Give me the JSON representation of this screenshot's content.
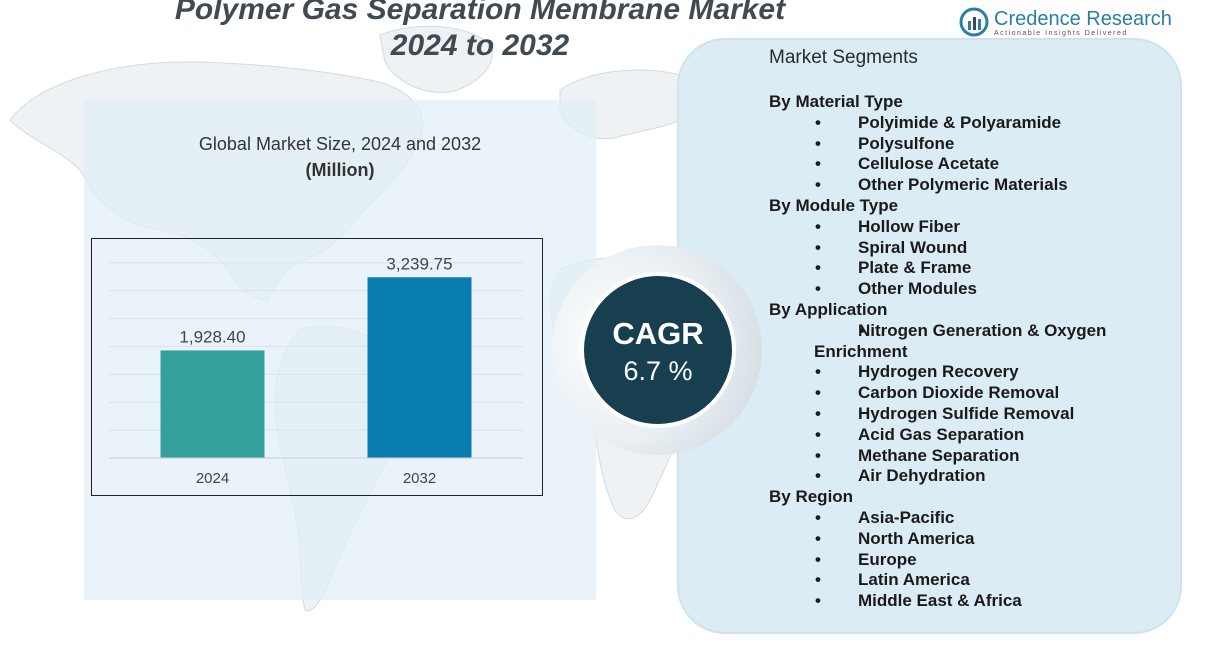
{
  "header": {
    "title_line1": "Polymer Gas Separation Membrane Market",
    "title_line2": "2024 to 2032"
  },
  "logo": {
    "name": "Credence Research",
    "tagline": "Actionable Insights Delivered",
    "icon": "credence-logo-icon"
  },
  "colors": {
    "bar_2024": "#35a19c",
    "bar_2032": "#0a7db0",
    "cagr_circle": "#183f4f",
    "segment_panel": "#dcecf5"
  },
  "chart_data": {
    "type": "bar",
    "title": "Global Market Size, 2024 and 2032",
    "subtitle": "(Million)",
    "categories": [
      "2024",
      "2032"
    ],
    "values": [
      1928.4,
      3239.75
    ],
    "value_labels": [
      "1,928.40",
      "3,239.75"
    ],
    "xlabel": "",
    "ylabel": "",
    "ylim": [
      0,
      3800
    ],
    "grid": true
  },
  "cagr": {
    "label": "CAGR",
    "value": "6.7 %"
  },
  "segments": {
    "heading": "Market Segments",
    "groups": [
      {
        "title": "By Material Type",
        "items": [
          "Polyimide & Polyaramide",
          "Polysulfone",
          "Cellulose Acetate",
          "Other Polymeric Materials"
        ]
      },
      {
        "title": "By Module Type",
        "items": [
          "Hollow Fiber",
          "Spiral Wound",
          "Plate & Frame",
          "Other Modules"
        ]
      },
      {
        "title": "By Application",
        "items": [
          "Nitrogen Generation & Oxygen Enrichment",
          "Hydrogen Recovery",
          "Carbon Dioxide Removal",
          "Hydrogen Sulfide Removal",
          "Acid Gas Separation",
          "Methane Separation",
          "Air Dehydration"
        ]
      },
      {
        "title": "By Region",
        "items": [
          "Asia-Pacific",
          "North America",
          "Europe",
          "Latin America",
          "Middle East & Africa"
        ]
      }
    ]
  }
}
